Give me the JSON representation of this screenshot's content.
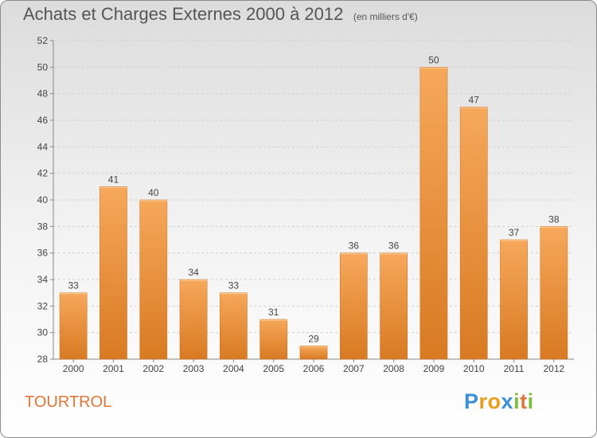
{
  "title": "Achats et Charges Externes 2000 à 2012",
  "subtitle": "(en milliers d'€)",
  "commune": "TOURTROL",
  "logo": {
    "letters": [
      "P",
      "r",
      "o",
      "x",
      "i",
      "t",
      "i"
    ],
    "colors": [
      "#3a8fd9",
      "#e8a01c",
      "#e8a01c",
      "#3a8fd9",
      "#7bbf3a",
      "#e2753a",
      "#7bbf3a"
    ]
  },
  "colors": {
    "bar_top": "#f6a85a",
    "bar_bottom": "#d87a22",
    "commune": "#e2753a"
  },
  "chart_data": {
    "type": "bar",
    "title": "Achats et Charges Externes 2000 à 2012",
    "subtitle": "(en milliers d'€)",
    "categories": [
      "2000",
      "2001",
      "2002",
      "2003",
      "2004",
      "2005",
      "2006",
      "2007",
      "2008",
      "2009",
      "2010",
      "2011",
      "2012"
    ],
    "values": [
      33,
      41,
      40,
      34,
      33,
      31,
      29,
      36,
      36,
      50,
      47,
      37,
      38
    ],
    "labels": [
      "33",
      "41",
      "40",
      "34",
      "33",
      "31",
      "29",
      "36",
      "36",
      "50",
      "47",
      "37",
      "38"
    ],
    "ylim": [
      28,
      52
    ],
    "yticks": [
      "28",
      "30",
      "32",
      "34",
      "36",
      "38",
      "40",
      "42",
      "44",
      "46",
      "48",
      "50",
      "52"
    ],
    "xlabel": "",
    "ylabel": "",
    "grid": true
  }
}
